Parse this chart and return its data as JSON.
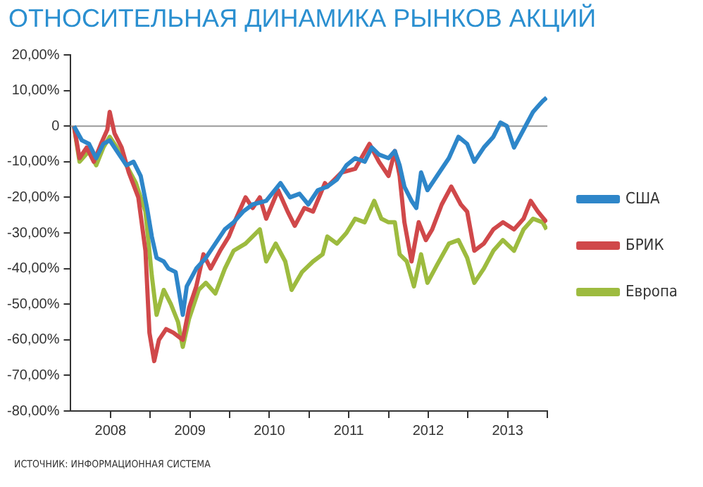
{
  "chart_data": {
    "type": "line",
    "title": "ОТНОСИТЕЛЬНАЯ ДИНАМИКА РЫНКОВ АКЦИЙ",
    "xlim": [
      2008,
      2014
    ],
    "xticks": [
      {
        "value": 2008.5,
        "label": "2008"
      },
      {
        "value": 2009,
        "label": null
      },
      {
        "value": 2009.5,
        "label": "2009"
      },
      {
        "value": 2010,
        "label": null
      },
      {
        "value": 2010.5,
        "label": "2010"
      },
      {
        "value": 2011,
        "label": null
      },
      {
        "value": 2011.5,
        "label": "2011"
      },
      {
        "value": 2012,
        "label": null
      },
      {
        "value": 2012.5,
        "label": "2012"
      },
      {
        "value": 2013,
        "label": null
      },
      {
        "value": 2013.5,
        "label": "2013"
      },
      {
        "value": 2014,
        "label": null
      }
    ],
    "ylim": [
      -80,
      20
    ],
    "yticks": [
      {
        "value": 20,
        "label": "20,00%"
      },
      {
        "value": 10,
        "label": "10,00%"
      },
      {
        "value": 0,
        "label": "0"
      },
      {
        "value": -10,
        "label": "-10,00%"
      },
      {
        "value": -20,
        "label": "-20,00%"
      },
      {
        "value": -30,
        "label": "-30,00%"
      },
      {
        "value": -40,
        "label": "-40,00%"
      },
      {
        "value": -50,
        "label": "-50,00%"
      },
      {
        "value": -60,
        "label": "-60,00%"
      },
      {
        "value": -70,
        "label": "-70,00%"
      },
      {
        "value": -80,
        "label": "-80,00%"
      }
    ],
    "grid": false,
    "legend": "right",
    "marker": "none",
    "line_style": "solid",
    "ref_lines": [
      {
        "axis": "y",
        "value": 0,
        "color": "#9a9a9a"
      }
    ],
    "annotations": [
      "ИСТОЧНИК: ИНФОРМАЦИОННАЯ СИСТЕМА"
    ],
    "series": [
      {
        "name": "США",
        "color": "#2e86c9",
        "x": [
          2008.04,
          2008.14,
          2008.23,
          2008.32,
          2008.41,
          2008.49,
          2008.58,
          2008.7,
          2008.79,
          2008.88,
          2008.96,
          2009.02,
          2009.08,
          2009.17,
          2009.23,
          2009.32,
          2009.41,
          2009.46,
          2009.58,
          2009.7,
          2009.82,
          2009.94,
          2010.05,
          2010.17,
          2010.29,
          2010.46,
          2010.64,
          2010.76,
          2010.88,
          2010.99,
          2011.11,
          2011.23,
          2011.35,
          2011.47,
          2011.58,
          2011.7,
          2011.79,
          2011.88,
          2012.0,
          2012.08,
          2012.14,
          2012.2,
          2012.29,
          2012.35,
          2012.41,
          2012.49,
          2012.61,
          2012.76,
          2012.88,
          2012.99,
          2013.08,
          2013.2,
          2013.32,
          2013.41,
          2013.49,
          2013.58,
          2013.7,
          2013.82,
          2013.94,
          2013.99
        ],
        "values": [
          0,
          -4,
          -5,
          -9,
          -5,
          -4,
          -7,
          -11,
          -10,
          -14,
          -23,
          -31,
          -37,
          -38,
          -40,
          -41,
          -53,
          -45,
          -40,
          -37,
          -33,
          -29,
          -27,
          -24,
          -22,
          -21,
          -16,
          -20,
          -19,
          -22,
          -18,
          -17,
          -15,
          -11,
          -9,
          -10,
          -6,
          -8,
          -9,
          -7,
          -11,
          -17,
          -21,
          -23,
          -13,
          -18,
          -14,
          -9,
          -3,
          -5,
          -10,
          -6,
          -3,
          1,
          0,
          -6,
          -1,
          4,
          7,
          8
        ]
      },
      {
        "name": "БРИК",
        "color": "#d0484a",
        "x": [
          2008.04,
          2008.11,
          2008.2,
          2008.29,
          2008.38,
          2008.46,
          2008.49,
          2008.55,
          2008.64,
          2008.73,
          2008.85,
          2008.94,
          2008.99,
          2009.05,
          2009.11,
          2009.2,
          2009.29,
          2009.41,
          2009.49,
          2009.58,
          2009.67,
          2009.76,
          2009.88,
          2009.99,
          2010.08,
          2010.2,
          2010.29,
          2010.38,
          2010.46,
          2010.61,
          2010.73,
          2010.82,
          2010.94,
          2011.05,
          2011.2,
          2011.23,
          2011.41,
          2011.58,
          2011.76,
          2011.88,
          2012.0,
          2012.08,
          2012.14,
          2012.2,
          2012.29,
          2012.38,
          2012.47,
          2012.55,
          2012.67,
          2012.79,
          2012.91,
          2012.99,
          2013.08,
          2013.2,
          2013.32,
          2013.44,
          2013.58,
          2013.7,
          2013.79,
          2013.88,
          2013.99
        ],
        "values": [
          0,
          -9,
          -6,
          -10,
          -5,
          -1,
          4,
          -2,
          -6,
          -13,
          -20,
          -35,
          -58,
          -66,
          -60,
          -57,
          -58,
          -60,
          -51,
          -45,
          -36,
          -40,
          -35,
          -31,
          -26,
          -20,
          -23,
          -20,
          -26,
          -18,
          -24,
          -28,
          -23,
          -24,
          -16,
          -17,
          -13,
          -12,
          -5,
          -10,
          -14,
          -7,
          -14,
          -27,
          -38,
          -27,
          -32,
          -29,
          -22,
          -17,
          -22,
          -24,
          -35,
          -33,
          -29,
          -27,
          -29,
          -26,
          -21,
          -24,
          -27
        ]
      },
      {
        "name": "Европа",
        "color": "#9dbb3f",
        "x": [
          2008.04,
          2008.11,
          2008.23,
          2008.32,
          2008.41,
          2008.49,
          2008.58,
          2008.7,
          2008.82,
          2008.94,
          2009.02,
          2009.08,
          2009.17,
          2009.26,
          2009.35,
          2009.41,
          2009.49,
          2009.61,
          2009.7,
          2009.82,
          2009.94,
          2010.05,
          2010.2,
          2010.38,
          2010.46,
          2010.58,
          2010.7,
          2010.78,
          2010.91,
          2011.05,
          2011.17,
          2011.23,
          2011.35,
          2011.47,
          2011.58,
          2011.7,
          2011.82,
          2011.91,
          2012.0,
          2012.08,
          2012.14,
          2012.23,
          2012.32,
          2012.41,
          2012.49,
          2012.61,
          2012.76,
          2012.88,
          2012.99,
          2013.08,
          2013.2,
          2013.32,
          2013.44,
          2013.58,
          2013.7,
          2013.82,
          2013.94,
          2013.99
        ],
        "values": [
          0,
          -10,
          -7,
          -11,
          -6,
          -3,
          -6,
          -11,
          -16,
          -24,
          -42,
          -53,
          -46,
          -50,
          -55,
          -62,
          -54,
          -46,
          -44,
          -47,
          -40,
          -35,
          -33,
          -29,
          -38,
          -33,
          -38,
          -46,
          -41,
          -38,
          -36,
          -31,
          -33,
          -30,
          -26,
          -27,
          -21,
          -26,
          -27,
          -27,
          -36,
          -38,
          -45,
          -36,
          -44,
          -39,
          -33,
          -32,
          -37,
          -44,
          -40,
          -35,
          -32,
          -35,
          -29,
          -26,
          -27,
          -29
        ]
      }
    ]
  }
}
